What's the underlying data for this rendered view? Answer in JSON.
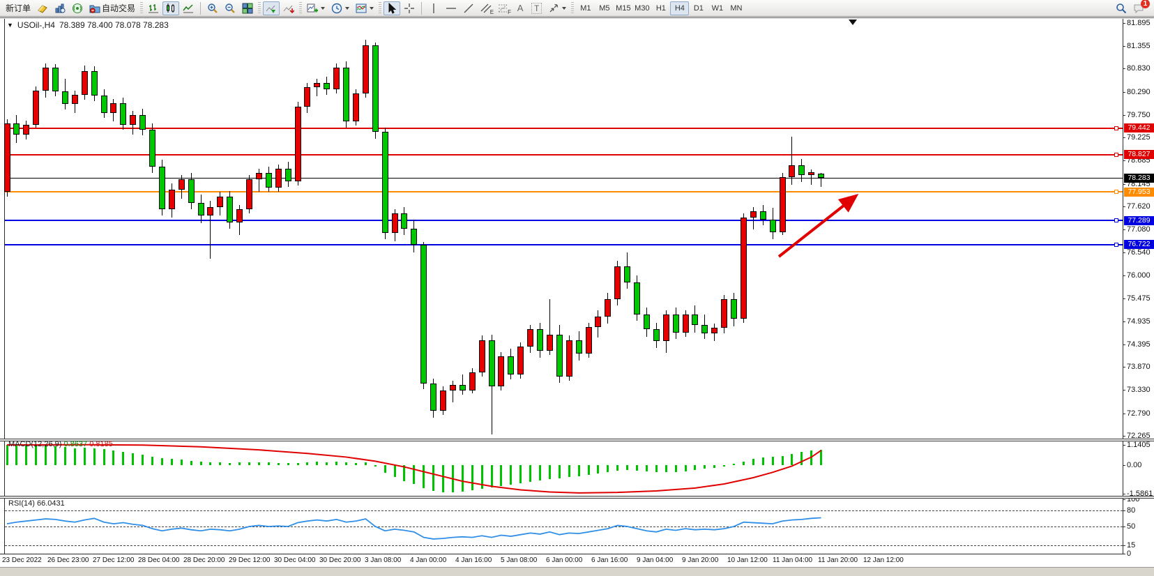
{
  "toolbar": {
    "new_order_label": "新订单",
    "auto_trading_label": "自动交易",
    "text_tool_letter": "A",
    "label_tool_letter": "T",
    "channel_letter": "E",
    "fibo_letter": "F",
    "timeframes": [
      "M1",
      "M5",
      "M15",
      "M30",
      "H1",
      "H4",
      "D1",
      "W1",
      "MN"
    ],
    "active_timeframe": "H4",
    "chat_badge_count": "1"
  },
  "chart": {
    "title": "USOil-,H4",
    "ohlc_text": "78.389 78.400 78.078 78.283"
  },
  "chart_data": {
    "type": "candlestick",
    "symbol": "USOil",
    "timeframe": "H4",
    "last_open": 78.389,
    "last_high": 78.4,
    "last_low": 78.078,
    "last_close": 78.283,
    "price_axis_ticks": [
      "81.895",
      "81.355",
      "80.830",
      "80.290",
      "79.750",
      "79.225",
      "78.685",
      "78.145",
      "77.620",
      "77.080",
      "76.540",
      "76.000",
      "75.475",
      "74.935",
      "74.395",
      "73.870",
      "73.330",
      "72.790",
      "72.265"
    ],
    "ylim": [
      72.265,
      81.895
    ],
    "grid": false,
    "horizontal_lines": [
      {
        "price": 79.442,
        "color": "#e00000",
        "kind": "resistance"
      },
      {
        "price": 78.827,
        "color": "#e00000",
        "kind": "resistance"
      },
      {
        "price": 78.283,
        "color": "#000000",
        "kind": "current-price"
      },
      {
        "price": 77.953,
        "color": "#ff8c00",
        "kind": "pivot"
      },
      {
        "price": 77.289,
        "color": "#0000e0",
        "kind": "support"
      },
      {
        "price": 76.722,
        "color": "#0000e0",
        "kind": "support"
      }
    ],
    "bull_color": "#e80000",
    "bear_color": "#00c800",
    "candles": [
      [
        77.95,
        79.65,
        77.85,
        79.55
      ],
      [
        79.55,
        79.75,
        79.1,
        79.3
      ],
      [
        79.3,
        79.62,
        79.18,
        79.52
      ],
      [
        79.52,
        80.42,
        79.45,
        80.32
      ],
      [
        80.32,
        80.95,
        80.15,
        80.85
      ],
      [
        80.85,
        80.93,
        80.18,
        80.3
      ],
      [
        80.3,
        80.6,
        79.88,
        80.0
      ],
      [
        80.0,
        80.32,
        79.8,
        80.22
      ],
      [
        80.22,
        80.9,
        80.1,
        80.78
      ],
      [
        80.78,
        80.88,
        80.08,
        80.2
      ],
      [
        80.2,
        80.35,
        79.68,
        79.8
      ],
      [
        79.8,
        80.12,
        79.6,
        80.02
      ],
      [
        80.02,
        80.15,
        79.4,
        79.52
      ],
      [
        79.52,
        79.85,
        79.3,
        79.75
      ],
      [
        79.75,
        79.9,
        79.28,
        79.4
      ],
      [
        79.4,
        79.55,
        78.4,
        78.55
      ],
      [
        78.55,
        78.7,
        77.4,
        77.55
      ],
      [
        77.55,
        78.15,
        77.35,
        78.0
      ],
      [
        78.0,
        78.35,
        77.8,
        78.25
      ],
      [
        78.25,
        78.4,
        77.55,
        77.7
      ],
      [
        77.7,
        77.9,
        77.22,
        77.4
      ],
      [
        77.4,
        77.75,
        76.4,
        77.6
      ],
      [
        77.6,
        77.95,
        77.4,
        77.85
      ],
      [
        77.85,
        77.98,
        77.1,
        77.25
      ],
      [
        77.25,
        77.65,
        76.95,
        77.55
      ],
      [
        77.55,
        78.35,
        77.45,
        78.25
      ],
      [
        78.25,
        78.5,
        77.95,
        78.4
      ],
      [
        78.4,
        78.55,
        77.95,
        78.05
      ],
      [
        78.05,
        78.6,
        77.95,
        78.5
      ],
      [
        78.5,
        78.65,
        78.08,
        78.2
      ],
      [
        78.2,
        80.05,
        78.1,
        79.95
      ],
      [
        79.95,
        80.5,
        79.8,
        80.4
      ],
      [
        80.4,
        80.6,
        80.18,
        80.5
      ],
      [
        80.5,
        80.65,
        80.22,
        80.35
      ],
      [
        80.35,
        80.95,
        80.25,
        80.85
      ],
      [
        80.85,
        81.0,
        79.45,
        79.6
      ],
      [
        79.6,
        80.35,
        79.5,
        80.25
      ],
      [
        80.25,
        81.5,
        80.15,
        81.38
      ],
      [
        81.38,
        81.44,
        79.2,
        79.35
      ],
      [
        79.35,
        79.45,
        76.85,
        77.0
      ],
      [
        77.0,
        77.55,
        76.8,
        77.45
      ],
      [
        77.45,
        77.6,
        76.95,
        77.1
      ],
      [
        77.1,
        77.3,
        76.55,
        76.72
      ],
      [
        76.72,
        76.78,
        73.35,
        73.48
      ],
      [
        73.48,
        73.6,
        72.68,
        72.85
      ],
      [
        72.85,
        73.42,
        72.75,
        73.32
      ],
      [
        73.32,
        73.55,
        73.05,
        73.45
      ],
      [
        73.45,
        73.7,
        73.22,
        73.32
      ],
      [
        73.32,
        73.85,
        73.25,
        73.75
      ],
      [
        73.75,
        74.6,
        73.65,
        74.5
      ],
      [
        74.5,
        74.62,
        72.3,
        73.42
      ],
      [
        73.42,
        74.22,
        73.32,
        74.12
      ],
      [
        74.12,
        74.3,
        73.58,
        73.7
      ],
      [
        73.7,
        74.45,
        73.6,
        74.35
      ],
      [
        74.35,
        74.85,
        74.2,
        74.75
      ],
      [
        74.75,
        74.9,
        74.08,
        74.25
      ],
      [
        74.25,
        75.45,
        74.15,
        74.62
      ],
      [
        74.62,
        74.85,
        73.5,
        73.65
      ],
      [
        73.65,
        74.6,
        73.55,
        74.5
      ],
      [
        74.5,
        74.7,
        74.02,
        74.18
      ],
      [
        74.18,
        74.9,
        74.08,
        74.8
      ],
      [
        74.8,
        75.2,
        74.55,
        75.05
      ],
      [
        75.05,
        75.6,
        74.88,
        75.45
      ],
      [
        75.45,
        76.35,
        75.3,
        76.22
      ],
      [
        76.22,
        76.55,
        75.7,
        75.85
      ],
      [
        75.85,
        76.0,
        74.95,
        75.1
      ],
      [
        75.1,
        75.25,
        74.58,
        74.75
      ],
      [
        74.75,
        74.9,
        74.32,
        74.48
      ],
      [
        74.48,
        75.2,
        74.2,
        75.1
      ],
      [
        75.1,
        75.25,
        74.52,
        74.68
      ],
      [
        74.68,
        75.2,
        74.58,
        75.1
      ],
      [
        75.1,
        75.3,
        74.68,
        74.85
      ],
      [
        74.85,
        75.1,
        74.52,
        74.65
      ],
      [
        74.65,
        74.88,
        74.48,
        74.78
      ],
      [
        74.78,
        75.55,
        74.65,
        75.45
      ],
      [
        75.45,
        75.6,
        74.82,
        75.0
      ],
      [
        75.0,
        77.45,
        74.9,
        77.35
      ],
      [
        77.35,
        77.6,
        77.08,
        77.5
      ],
      [
        77.5,
        77.65,
        77.18,
        77.3
      ],
      [
        77.3,
        77.58,
        76.85,
        77.02
      ],
      [
        77.02,
        78.4,
        76.95,
        78.3
      ],
      [
        78.3,
        79.25,
        78.12,
        78.58
      ],
      [
        78.58,
        78.72,
        78.18,
        78.35
      ],
      [
        78.35,
        78.48,
        78.12,
        78.42
      ],
      [
        78.389,
        78.4,
        78.078,
        78.283
      ]
    ],
    "x_labels": [
      "23 Dec 2022",
      "26 Dec 23:00",
      "27 Dec 12:00",
      "28 Dec 04:00",
      "28 Dec 20:00",
      "29 Dec 12:00",
      "30 Dec 04:00",
      "30 Dec 20:00",
      "3 Jan 08:00",
      "4 Jan 00:00",
      "4 Jan 16:00",
      "5 Jan 08:00",
      "6 Jan 00:00",
      "6 Jan 16:00",
      "9 Jan 04:00",
      "9 Jan 20:00",
      "10 Jan 12:00",
      "11 Jan 04:00",
      "11 Jan 20:00",
      "12 Jan 12:00"
    ],
    "annotation_arrow": {
      "color": "#e00000",
      "direction": "up-right"
    },
    "macd": {
      "name": "MACD(12,26,9)",
      "value": "0.8637",
      "signal_value": "0.8185",
      "axis_ticks": [
        "1.1405",
        "0.00",
        "-1.5861"
      ],
      "hist_color": "#00c300",
      "signal_color": "#e00000",
      "histogram": [
        1.14,
        1.13,
        1.12,
        1.1,
        1.08,
        1.05,
        1.0,
        0.95,
        0.98,
        0.92,
        0.88,
        0.8,
        0.72,
        0.66,
        0.58,
        0.48,
        0.4,
        0.34,
        0.3,
        0.25,
        0.2,
        0.17,
        0.14,
        0.12,
        0.14,
        0.15,
        0.16,
        0.15,
        0.13,
        0.11,
        0.13,
        0.16,
        0.18,
        0.17,
        0.19,
        0.16,
        0.12,
        0.14,
        -0.08,
        -0.42,
        -0.68,
        -0.88,
        -1.05,
        -1.28,
        -1.45,
        -1.5,
        -1.52,
        -1.48,
        -1.42,
        -1.32,
        -1.26,
        -1.18,
        -1.1,
        -1.02,
        -0.92,
        -0.86,
        -0.78,
        -0.74,
        -0.66,
        -0.62,
        -0.56,
        -0.48,
        -0.4,
        -0.32,
        -0.28,
        -0.3,
        -0.34,
        -0.38,
        -0.4,
        -0.38,
        -0.34,
        -0.28,
        -0.2,
        -0.14,
        -0.06,
        0.06,
        0.2,
        0.34,
        0.42,
        0.46,
        0.52,
        0.62,
        0.72,
        0.8,
        0.864
      ],
      "signal_points": [
        [
          0,
          1.13
        ],
        [
          8,
          1.14
        ],
        [
          14,
          1.12
        ],
        [
          20,
          1.02
        ],
        [
          26,
          0.85
        ],
        [
          31,
          0.65
        ],
        [
          35,
          0.45
        ],
        [
          38,
          0.22
        ],
        [
          41,
          -0.1
        ],
        [
          44,
          -0.5
        ],
        [
          47,
          -0.9
        ],
        [
          50,
          -1.18
        ],
        [
          53,
          -1.38
        ],
        [
          56,
          -1.5
        ],
        [
          59,
          -1.55
        ],
        [
          63,
          -1.52
        ],
        [
          67,
          -1.44
        ],
        [
          71,
          -1.28
        ],
        [
          74,
          -1.05
        ],
        [
          77,
          -0.7
        ],
        [
          79,
          -0.4
        ],
        [
          81,
          -0.05
        ],
        [
          83,
          0.45
        ],
        [
          84,
          0.82
        ]
      ]
    },
    "rsi": {
      "name": "RSI(14)",
      "value": "66.0431",
      "axis_ticks": [
        "100",
        "80",
        "50",
        "15",
        "0"
      ],
      "levels": [
        80,
        50,
        15
      ],
      "line_color": "#2f8fe8",
      "values": [
        55,
        58,
        60,
        62,
        64,
        63,
        60,
        58,
        62,
        65,
        58,
        55,
        57,
        54,
        52,
        46,
        42,
        45,
        47,
        44,
        42,
        45,
        44,
        42,
        45,
        50,
        52,
        50,
        51,
        50,
        57,
        60,
        62,
        60,
        63,
        58,
        60,
        64,
        50,
        42,
        45,
        43,
        40,
        30,
        27,
        28,
        30,
        31,
        30,
        33,
        30,
        34,
        32,
        35,
        38,
        36,
        40,
        35,
        38,
        37,
        40,
        43,
        46,
        52,
        50,
        46,
        42,
        40,
        45,
        43,
        46,
        44,
        45,
        44,
        46,
        50,
        58,
        57,
        56,
        55,
        60,
        62,
        63,
        65,
        66
      ]
    }
  }
}
